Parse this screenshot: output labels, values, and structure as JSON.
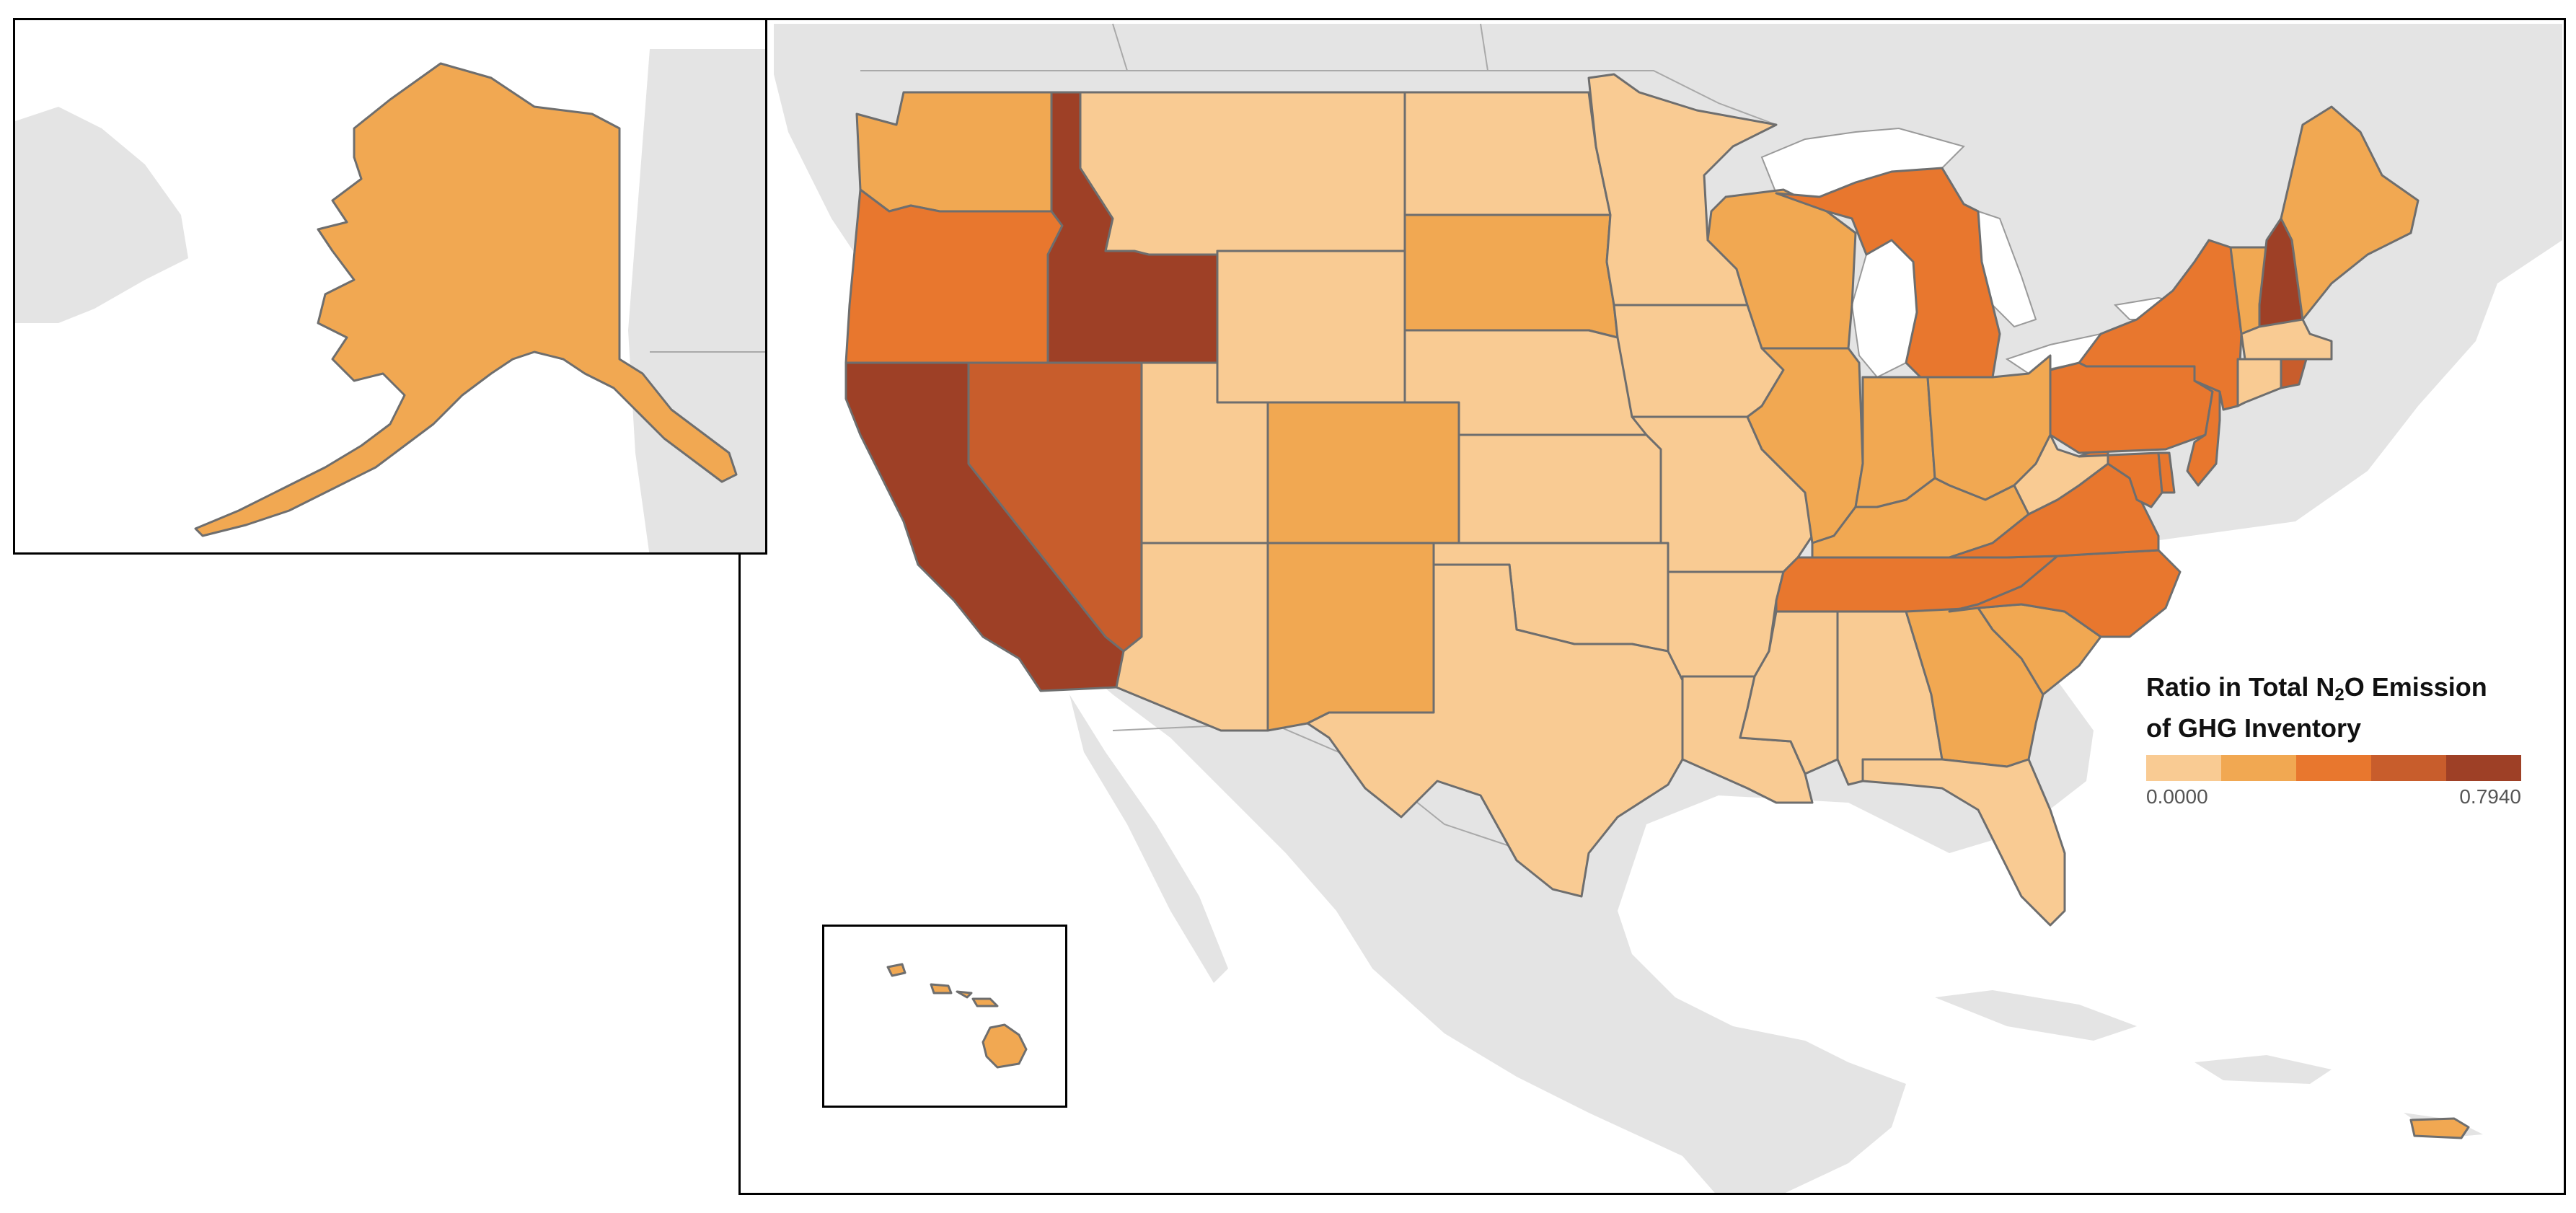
{
  "legend": {
    "title_part1": "Ratio in Total N",
    "title_sub": "2",
    "title_part2": "O Emission",
    "title_line2": "of GHG Inventory",
    "min_label": "0.0000",
    "max_label": "0.7940",
    "bins": [
      {
        "color": "#f9cb93"
      },
      {
        "color": "#f1a852"
      },
      {
        "color": "#e8772e"
      },
      {
        "color": "#c85d2c"
      },
      {
        "color": "#9e4026"
      }
    ]
  },
  "colors": {
    "background_land": "#e4e4e4",
    "water": "#ffffff",
    "state_border": "#6e6e6e"
  },
  "states": [
    {
      "name": "WA",
      "class": 2
    },
    {
      "name": "OR",
      "class": 3
    },
    {
      "name": "CA",
      "class": 5
    },
    {
      "name": "ID",
      "class": 5
    },
    {
      "name": "NV",
      "class": 4
    },
    {
      "name": "MT",
      "class": 1
    },
    {
      "name": "WY",
      "class": 1
    },
    {
      "name": "UT",
      "class": 1
    },
    {
      "name": "AZ",
      "class": 1
    },
    {
      "name": "CO",
      "class": 2
    },
    {
      "name": "NM",
      "class": 2
    },
    {
      "name": "ND",
      "class": 1
    },
    {
      "name": "SD",
      "class": 2
    },
    {
      "name": "NE",
      "class": 1
    },
    {
      "name": "KS",
      "class": 1
    },
    {
      "name": "OK",
      "class": 1
    },
    {
      "name": "TX",
      "class": 1
    },
    {
      "name": "MN",
      "class": 1
    },
    {
      "name": "IA",
      "class": 1
    },
    {
      "name": "MO",
      "class": 1
    },
    {
      "name": "AR",
      "class": 1
    },
    {
      "name": "LA",
      "class": 1
    },
    {
      "name": "WI",
      "class": 2
    },
    {
      "name": "IL",
      "class": 2
    },
    {
      "name": "MI",
      "class": 3
    },
    {
      "name": "IN",
      "class": 2
    },
    {
      "name": "OH",
      "class": 2
    },
    {
      "name": "KY",
      "class": 2
    },
    {
      "name": "TN",
      "class": 3
    },
    {
      "name": "MS",
      "class": 1
    },
    {
      "name": "AL",
      "class": 1
    },
    {
      "name": "GA",
      "class": 2
    },
    {
      "name": "FL",
      "class": 1
    },
    {
      "name": "SC",
      "class": 2
    },
    {
      "name": "NC",
      "class": 3
    },
    {
      "name": "VA",
      "class": 3
    },
    {
      "name": "WV",
      "class": 1
    },
    {
      "name": "MD",
      "class": 3
    },
    {
      "name": "DE",
      "class": 3
    },
    {
      "name": "PA",
      "class": 3
    },
    {
      "name": "NJ",
      "class": 3
    },
    {
      "name": "NY",
      "class": 3
    },
    {
      "name": "CT",
      "class": 1
    },
    {
      "name": "RI",
      "class": 4
    },
    {
      "name": "MA",
      "class": 1
    },
    {
      "name": "VT",
      "class": 2
    },
    {
      "name": "NH",
      "class": 5
    },
    {
      "name": "ME",
      "class": 2
    },
    {
      "name": "AK",
      "class": 2
    },
    {
      "name": "HI",
      "class": 2
    },
    {
      "name": "PR",
      "class": 2
    }
  ]
}
